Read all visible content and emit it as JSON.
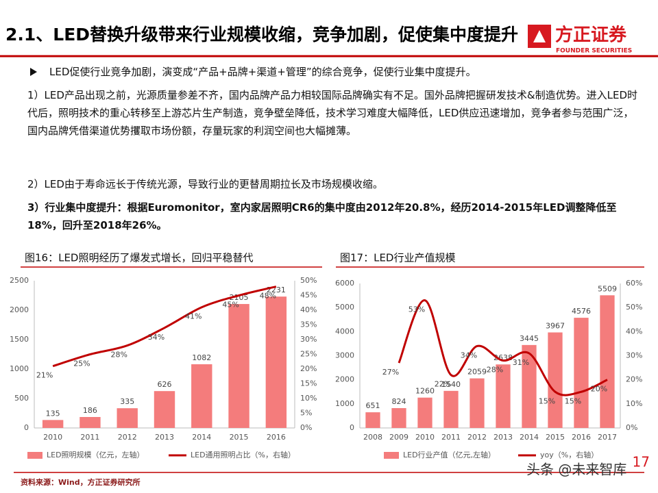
{
  "header": {
    "title": "2.1、LED替换升级带来行业规模收缩，竞争加剧，促使集中度提升",
    "logo": "方正证券",
    "logo_sub": "FOUNDER SECURITIES"
  },
  "bullet": "LED促使行业竞争加剧，演变成“产品+品牌+渠道+管理”的综合竞争，促使行业集中度提升。",
  "paragraphs": [
    "1）LED产品出现之前，光源质量参差不齐，国内品牌产品力相较国际品牌确实有不足。国外品牌把握研发技术&制造优势。进入LED时代后，照明技术的重心转移至上游芯片生产制造，竞争壁垒降低，技术学习难度大幅降低，LED供应迅速增加，竞争者参与范围广泛，国内品牌凭借渠道优势攫取市场份额，存量玩家的利润空间也大幅摊薄。",
    "2）LED由于寿命远长于传统光源，导致行业的更替周期拉长及市场规模收缩。",
    "3）行业集中度提升：根据Euromonitor，室内家居照明CR6的集中度由2012年20.8%，经历2014-2015年LED调整降低至18%，回升至2018年26%。"
  ],
  "chart_data": [
    {
      "type": "combo",
      "title": "图16：LED照明经历了爆发式增长，回归平稳替代",
      "smooth": true,
      "categories": [
        "2010",
        "2011",
        "2012",
        "2013",
        "2014",
        "2015",
        "2016"
      ],
      "series": [
        {
          "name": "LED照明规模（亿元，左轴）",
          "type": "bar",
          "color": "#f47c7c",
          "values": [
            135,
            186,
            335,
            626,
            1082,
            2105,
            2231
          ]
        },
        {
          "name": "LED通用照明占比（%，右轴）",
          "type": "line",
          "axis": "y2",
          "color": "#c00000",
          "values": [
            21,
            25,
            28,
            34,
            41,
            45,
            48
          ],
          "value_labels": [
            "21%",
            "25%",
            "28%",
            "34%",
            "41%",
            "45%",
            "48%"
          ]
        }
      ],
      "ylim": [
        0,
        2500
      ],
      "yticks": [
        0,
        500,
        1000,
        1500,
        2000,
        2500
      ],
      "y2lim": [
        0,
        50
      ],
      "y2ticks": [
        {
          "value": 0,
          "label": "0%"
        },
        {
          "value": 5,
          "label": "5%"
        },
        {
          "value": 10,
          "label": "10%"
        },
        {
          "value": 15,
          "label": "15%"
        },
        {
          "value": 20,
          "label": "20%"
        },
        {
          "value": 25,
          "label": "25%"
        },
        {
          "value": 30,
          "label": "30%"
        },
        {
          "value": 35,
          "label": "35%"
        },
        {
          "value": 40,
          "label": "40%"
        },
        {
          "value": 45,
          "label": "45%"
        },
        {
          "value": 50,
          "label": "50%"
        }
      ]
    },
    {
      "type": "combo",
      "title": "图17：LED行业产值规模",
      "smooth": true,
      "categories": [
        "2008",
        "2009",
        "2010",
        "2011",
        "2012",
        "2013",
        "2014",
        "2015",
        "2016",
        "2017"
      ],
      "series": [
        {
          "name": "LED行业产值（亿元,左轴）",
          "type": "bar",
          "color": "#f47c7c",
          "values": [
            651,
            824,
            1260,
            1540,
            2059,
            2638,
            3445,
            3967,
            4576,
            5509
          ]
        },
        {
          "name": "yoy（%，右轴）",
          "type": "line",
          "axis": "y2",
          "color": "#c00000",
          "values": [
            null,
            27,
            53,
            22,
            34,
            28,
            31,
            15,
            15,
            20
          ],
          "value_labels": [
            null,
            "27%",
            "53%",
            "22%",
            "34%",
            "28%",
            "31%",
            "15%",
            "15%",
            "20%"
          ]
        }
      ],
      "ylim": [
        0,
        6000
      ],
      "yticks": [
        0,
        1000,
        2000,
        3000,
        4000,
        5000,
        6000
      ],
      "y2lim": [
        0,
        60
      ],
      "y2ticks": [
        {
          "value": 0,
          "label": "0%"
        },
        {
          "value": 10,
          "label": "10%"
        },
        {
          "value": 20,
          "label": "20%"
        },
        {
          "value": 30,
          "label": "30%"
        },
        {
          "value": 40,
          "label": "40%"
        },
        {
          "value": 50,
          "label": "50%"
        },
        {
          "value": 60,
          "label": "60%"
        }
      ]
    }
  ],
  "source": "资料来源：Wind，方正证券研究所",
  "page_number": "17",
  "watermark": "头条 @未来智库"
}
